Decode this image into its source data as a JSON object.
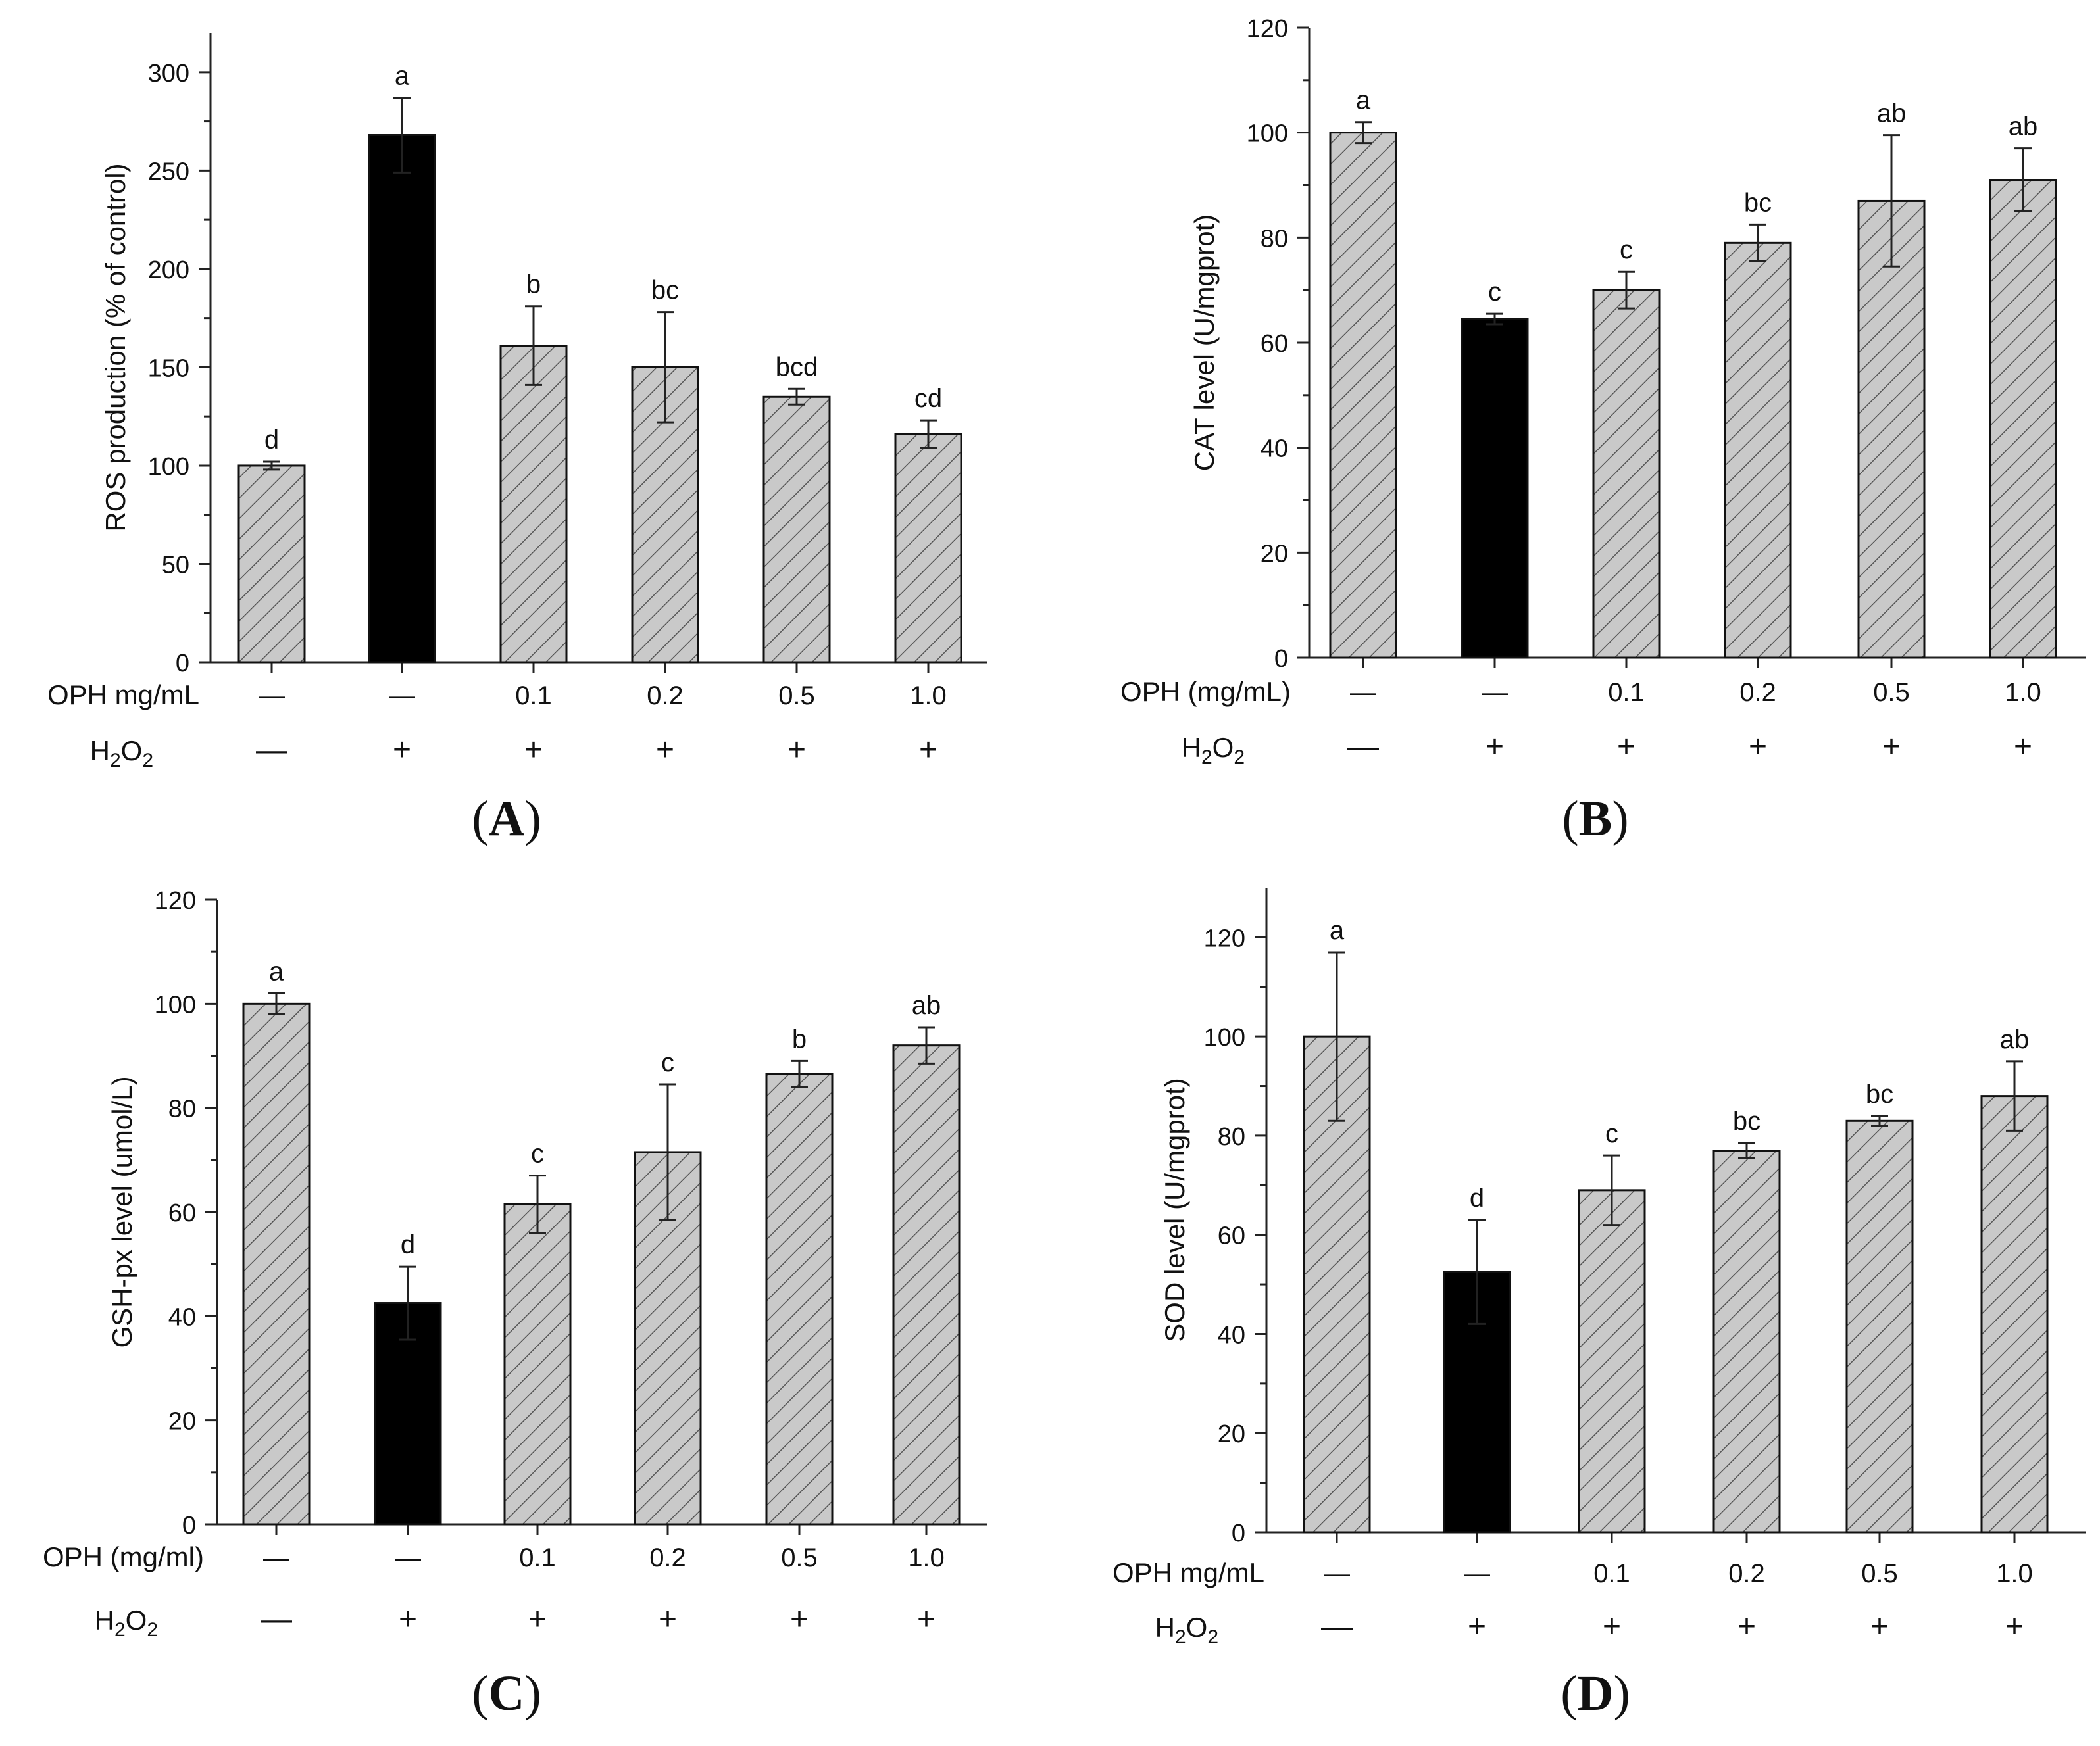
{
  "figure": {
    "colors": {
      "treated": "#c9c9c9",
      "control_bar": "#000000",
      "hatch": "#555555",
      "axis": "#222222"
    }
  },
  "chart_data": [
    {
      "panel": "A",
      "type": "bar",
      "ylabel": "ROS production (% of control)",
      "ylim": [
        0,
        320
      ],
      "yticks": [
        0,
        50,
        100,
        150,
        200,
        250,
        300
      ],
      "row1_label": "OPH mg/mL",
      "row2_label": "H2O2",
      "opH": [
        "—",
        "—",
        "0.1",
        "0.2",
        "0.5",
        "1.0"
      ],
      "h2o2": [
        "—",
        "+",
        "+",
        "+",
        "+",
        "+"
      ],
      "values": [
        100,
        268,
        161,
        150,
        135,
        116
      ],
      "errors": [
        2,
        19,
        20,
        28,
        4,
        7
      ],
      "letters": [
        "d",
        "a",
        "b",
        "bc",
        "bcd",
        "cd"
      ],
      "bar_style": [
        "hatched",
        "solid",
        "hatched",
        "hatched",
        "hatched",
        "hatched"
      ]
    },
    {
      "panel": "B",
      "type": "bar",
      "ylabel": "CAT level  (U/mgprot)",
      "ylim": [
        0,
        120
      ],
      "yticks": [
        0,
        20,
        40,
        60,
        80,
        100,
        120
      ],
      "row1_label": "OPH (mg/mL)",
      "row2_label": "H2O2",
      "opH": [
        "—",
        "—",
        "0.1",
        "0.2",
        "0.5",
        "1.0"
      ],
      "h2o2": [
        "—",
        "+",
        "+",
        "+",
        "+",
        "+"
      ],
      "values": [
        100,
        64.5,
        70,
        79,
        87,
        91
      ],
      "errors": [
        2,
        1,
        3.5,
        3.5,
        12.5,
        6
      ],
      "letters": [
        "a",
        "c",
        "c",
        "bc",
        "ab",
        "ab"
      ],
      "bar_style": [
        "hatched",
        "solid",
        "hatched",
        "hatched",
        "hatched",
        "hatched"
      ]
    },
    {
      "panel": "C",
      "type": "bar",
      "ylabel": "GSH-px level (umol/L)",
      "ylim": [
        0,
        120
      ],
      "yticks": [
        0,
        20,
        40,
        60,
        80,
        100,
        120
      ],
      "row1_label": "OPH (mg/ml)",
      "row2_label": "H2O2",
      "opH": [
        "—",
        "—",
        "0.1",
        "0.2",
        "0.5",
        "1.0"
      ],
      "h2o2": [
        "—",
        "+",
        "+",
        "+",
        "+",
        "+"
      ],
      "values": [
        100,
        42.5,
        61.5,
        71.5,
        86.5,
        92
      ],
      "errors": [
        2,
        7,
        5.5,
        13,
        2.5,
        3.5
      ],
      "letters": [
        "a",
        "d",
        "c",
        "c",
        "b",
        "ab"
      ],
      "bar_style": [
        "hatched",
        "solid",
        "hatched",
        "hatched",
        "hatched",
        "hatched"
      ]
    },
    {
      "panel": "D",
      "type": "bar",
      "ylabel": "SOD level (U/mgprot)",
      "ylim": [
        0,
        130
      ],
      "yticks": [
        0,
        20,
        40,
        60,
        80,
        100,
        120
      ],
      "row1_label": "OPH mg/mL",
      "row2_label": "H2O2",
      "opH": [
        "—",
        "—",
        "0.1",
        "0.2",
        "0.5",
        "1.0"
      ],
      "h2o2": [
        "—",
        "+",
        "+",
        "+",
        "+",
        "+"
      ],
      "values": [
        100,
        52.5,
        69,
        77,
        83,
        88
      ],
      "errors": [
        17,
        10.5,
        7,
        1.5,
        1,
        7
      ],
      "letters": [
        "a",
        "d",
        "c",
        "bc",
        "bc",
        "ab"
      ],
      "bar_style": [
        "hatched",
        "solid",
        "hatched",
        "hatched",
        "hatched",
        "hatched"
      ]
    }
  ]
}
